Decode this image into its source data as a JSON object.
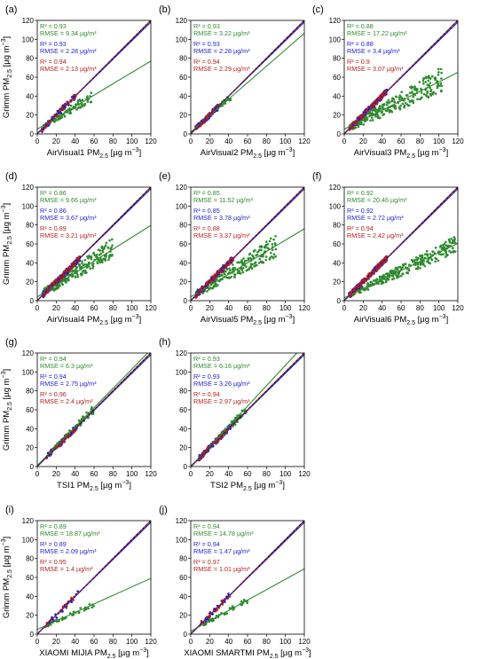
{
  "figure": {
    "y_label_main": "Grimm PM",
    "y_label_sub": "2.5",
    "y_label_unit": " [µg m",
    "y_label_exp": "−3",
    "y_label_end": "]"
  },
  "colors": {
    "green": "#2e8b2e",
    "blue": "#1f1fd0",
    "red": "#b22222",
    "one_to_one": "#000000"
  },
  "chart_data": [
    {
      "type": "scatter",
      "panel_label": "(a)",
      "xlabel_main": "AirVisual1 PM",
      "xlabel_sub": "2.5",
      "xlabel_unit": " [µg m",
      "xlabel_exp": "−3",
      "xlabel_end": "]",
      "xlim": [
        0,
        120
      ],
      "ylim": [
        0,
        120
      ],
      "xticks": [
        0,
        20,
        40,
        60,
        80,
        100,
        120
      ],
      "yticks": [
        0,
        20,
        40,
        60,
        80,
        100,
        120
      ],
      "show_ylabel": true,
      "stats": [
        {
          "color": "green",
          "r2": "R² = 0.93",
          "rmse": "RMSE = 9.34 µg/m³"
        },
        {
          "color": "blue",
          "r2": "R² = 0.93",
          "rmse": "RMSE = 2.28 µg/m³"
        },
        {
          "color": "red",
          "r2": "R² = 0.94",
          "rmse": "RMSE = 2.13 µg/m³"
        }
      ],
      "fits": [
        {
          "color": "green",
          "slope": 0.6,
          "intercept": 5
        },
        {
          "color": "blue",
          "slope": 0.98,
          "intercept": 0.5
        },
        {
          "color": "red",
          "slope": 1.0,
          "intercept": 0
        }
      ],
      "scatter": {
        "color": "green",
        "x_range": [
          5,
          58
        ],
        "slope": 0.62,
        "intercept": 4,
        "spread": 4,
        "n": 90,
        "seed": 11
      }
    },
    {
      "type": "scatter",
      "panel_label": "(b)",
      "xlabel_main": "AirVisual2 PM",
      "xlabel_sub": "2.5",
      "xlabel_unit": " [µg m",
      "xlabel_exp": "−3",
      "xlabel_end": "]",
      "xlim": [
        0,
        120
      ],
      "ylim": [
        0,
        120
      ],
      "xticks": [
        0,
        20,
        40,
        60,
        80,
        100,
        120
      ],
      "yticks": [
        0,
        20,
        40,
        60,
        80,
        100,
        120
      ],
      "show_ylabel": false,
      "stats": [
        {
          "color": "green",
          "r2": "R² = 0.93",
          "rmse": "RMSE = 3.22 µg/m³"
        },
        {
          "color": "blue",
          "r2": "R² = 0.93",
          "rmse": "RMSE = 2.28 µg/m³"
        },
        {
          "color": "red",
          "r2": "R² = 0.94",
          "rmse": "RMSE = 2.29 µg/m³"
        }
      ],
      "fits": [
        {
          "color": "green",
          "slope": 0.87,
          "intercept": 2
        },
        {
          "color": "blue",
          "slope": 0.98,
          "intercept": 0.5
        },
        {
          "color": "red",
          "slope": 1.0,
          "intercept": 0
        }
      ],
      "scatter": {
        "color": "green",
        "x_range": [
          5,
          42
        ],
        "slope": 0.88,
        "intercept": 2,
        "spread": 3,
        "n": 90,
        "seed": 23
      }
    },
    {
      "type": "scatter",
      "panel_label": "(c)",
      "xlabel_main": "AirVisual3 PM",
      "xlabel_sub": "2.5",
      "xlabel_unit": " [µg m",
      "xlabel_exp": "−3",
      "xlabel_end": "]",
      "xlim": [
        0,
        120
      ],
      "ylim": [
        0,
        120
      ],
      "xticks": [
        0,
        20,
        40,
        60,
        80,
        100,
        120
      ],
      "yticks": [
        0,
        20,
        40,
        60,
        80,
        100,
        120
      ],
      "show_ylabel": false,
      "stats": [
        {
          "color": "green",
          "r2": "R² = 0.88",
          "rmse": "RMSE = 17.22 µg/m³"
        },
        {
          "color": "blue",
          "r2": "R² = 0.88",
          "rmse": "RMSE = 3.4 µg/m³"
        },
        {
          "color": "red",
          "r2": "R² = 0.9",
          "rmse": "RMSE = 3.07 µg/m³"
        }
      ],
      "fits": [
        {
          "color": "green",
          "slope": 0.5,
          "intercept": 5
        },
        {
          "color": "blue",
          "slope": 0.98,
          "intercept": 0.5
        },
        {
          "color": "red",
          "slope": 1.0,
          "intercept": 0
        }
      ],
      "scatter": {
        "color": "green",
        "x_range": [
          5,
          105
        ],
        "slope": 0.52,
        "intercept": 4,
        "spread": 6,
        "n": 260,
        "seed": 37
      }
    },
    {
      "type": "scatter",
      "panel_label": "(d)",
      "xlabel_main": "AirVisual4 PM",
      "xlabel_sub": "2.5",
      "xlabel_unit": " [µg m",
      "xlabel_exp": "−3",
      "xlabel_end": "]",
      "xlim": [
        0,
        120
      ],
      "ylim": [
        0,
        120
      ],
      "xticks": [
        0,
        20,
        40,
        60,
        80,
        100,
        120
      ],
      "yticks": [
        0,
        20,
        40,
        60,
        80,
        100,
        120
      ],
      "show_ylabel": true,
      "stats": [
        {
          "color": "green",
          "r2": "R² = 0.86",
          "rmse": "RMSE = 9.66 µg/m³"
        },
        {
          "color": "blue",
          "r2": "R² = 0.86",
          "rmse": "RMSE = 3.67 µg/m³"
        },
        {
          "color": "red",
          "r2": "R² = 0.89",
          "rmse": "RMSE = 3.21 µg/m³"
        }
      ],
      "fits": [
        {
          "color": "green",
          "slope": 0.63,
          "intercept": 4
        },
        {
          "color": "blue",
          "slope": 0.98,
          "intercept": 0.5
        },
        {
          "color": "red",
          "slope": 1.0,
          "intercept": 0
        }
      ],
      "scatter": {
        "color": "green",
        "x_range": [
          5,
          80
        ],
        "slope": 0.65,
        "intercept": 4,
        "spread": 6,
        "n": 220,
        "seed": 41
      }
    },
    {
      "type": "scatter",
      "panel_label": "(e)",
      "xlabel_main": "AirVisual5 PM",
      "xlabel_sub": "2.5",
      "xlabel_unit": " [µg m",
      "xlabel_exp": "−3",
      "xlabel_end": "]",
      "xlim": [
        0,
        120
      ],
      "ylim": [
        0,
        120
      ],
      "xticks": [
        0,
        20,
        40,
        60,
        80,
        100,
        120
      ],
      "yticks": [
        0,
        20,
        40,
        60,
        80,
        100,
        120
      ],
      "show_ylabel": false,
      "stats": [
        {
          "color": "green",
          "r2": "R² = 0.85",
          "rmse": "RMSE = 11.52 µg/m³"
        },
        {
          "color": "blue",
          "r2": "R² = 0.85",
          "rmse": "RMSE = 3.78 µg/m³"
        },
        {
          "color": "red",
          "r2": "R² = 0.88",
          "rmse": "RMSE = 3.37 µg/m³"
        }
      ],
      "fits": [
        {
          "color": "green",
          "slope": 0.6,
          "intercept": 4
        },
        {
          "color": "blue",
          "slope": 0.98,
          "intercept": 0.5
        },
        {
          "color": "red",
          "slope": 1.0,
          "intercept": 0
        }
      ],
      "scatter": {
        "color": "green",
        "x_range": [
          5,
          90
        ],
        "slope": 0.6,
        "intercept": 4,
        "spread": 6,
        "n": 220,
        "seed": 53
      }
    },
    {
      "type": "scatter",
      "panel_label": "(f)",
      "xlabel_main": "AirVisual6 PM",
      "xlabel_sub": "2.5",
      "xlabel_unit": " [µg m",
      "xlabel_exp": "−3",
      "xlabel_end": "]",
      "xlim": [
        0,
        120
      ],
      "ylim": [
        0,
        120
      ],
      "xticks": [
        0,
        20,
        40,
        60,
        80,
        100,
        120
      ],
      "yticks": [
        0,
        20,
        40,
        60,
        80,
        100,
        120
      ],
      "show_ylabel": false,
      "stats": [
        {
          "color": "green",
          "r2": "R² = 0.92",
          "rmse": "RMSE = 20.46 µg/m³"
        },
        {
          "color": "blue",
          "r2": "R² = 0.92",
          "rmse": "RMSE = 2.72 µg/m³"
        },
        {
          "color": "red",
          "r2": "R² = 0.94",
          "rmse": "RMSE = 2.42 µg/m³"
        }
      ],
      "fits": [
        {
          "color": "green",
          "slope": 0.48,
          "intercept": 3
        },
        {
          "color": "blue",
          "slope": 0.98,
          "intercept": 0.5
        },
        {
          "color": "red",
          "slope": 1.0,
          "intercept": 0
        }
      ],
      "scatter": {
        "color": "green",
        "x_range": [
          5,
          118
        ],
        "slope": 0.48,
        "intercept": 3,
        "spread": 4,
        "n": 280,
        "seed": 61
      }
    },
    {
      "type": "scatter",
      "panel_label": "(g)",
      "xlabel_main": "TSI1 PM",
      "xlabel_sub": "2.5",
      "xlabel_unit": " [µg m",
      "xlabel_exp": "−3",
      "xlabel_end": "]",
      "xlim": [
        0,
        120
      ],
      "ylim": [
        0,
        120
      ],
      "xticks": [
        0,
        20,
        40,
        60,
        80,
        100,
        120
      ],
      "yticks": [
        0,
        20,
        40,
        60,
        80,
        100,
        120
      ],
      "show_ylabel": true,
      "stats": [
        {
          "color": "green",
          "r2": "R² = 0.94",
          "rmse": "RMSE = 6.3 µg/m³"
        },
        {
          "color": "blue",
          "r2": "R² = 0.94",
          "rmse": "RMSE = 2.75 µg/m³"
        },
        {
          "color": "red",
          "r2": "R² = 0.96",
          "rmse": "RMSE = 2.4 µg/m³"
        }
      ],
      "fits": [
        {
          "color": "green",
          "slope": 1.02,
          "intercept": 1
        },
        {
          "color": "blue",
          "slope": 0.98,
          "intercept": 0.5
        },
        {
          "color": "red",
          "slope": 1.0,
          "intercept": 0
        }
      ],
      "scatter": {
        "color": "green",
        "x_range": [
          10,
          60
        ],
        "slope": 1.0,
        "intercept": 1,
        "spread": 3,
        "n": 90,
        "seed": 71
      }
    },
    {
      "type": "scatter",
      "panel_label": "(h)",
      "xlabel_main": "TSI2 PM",
      "xlabel_sub": "2.5",
      "xlabel_unit": " [µg m",
      "xlabel_exp": "−3",
      "xlabel_end": "]",
      "xlim": [
        0,
        120
      ],
      "ylim": [
        0,
        120
      ],
      "xticks": [
        0,
        20,
        40,
        60,
        80,
        100,
        120
      ],
      "yticks": [
        0,
        20,
        40,
        60,
        80,
        100,
        120
      ],
      "show_ylabel": false,
      "stats": [
        {
          "color": "green",
          "r2": "R² = 0.93",
          "rmse": "RMSE = 6.16 µg/m³"
        },
        {
          "color": "blue",
          "r2": "R² = 0.93",
          "rmse": "RMSE = 3.26 µg/m³"
        },
        {
          "color": "red",
          "r2": "R² = 0.94",
          "rmse": "RMSE = 2.97 µg/m³"
        }
      ],
      "fits": [
        {
          "color": "green",
          "slope": 1.08,
          "intercept": -1
        },
        {
          "color": "blue",
          "slope": 0.98,
          "intercept": 0.5
        },
        {
          "color": "red",
          "slope": 1.0,
          "intercept": 0
        }
      ],
      "scatter": {
        "color": "green",
        "x_range": [
          8,
          60
        ],
        "slope": 1.02,
        "intercept": 0,
        "spread": 3,
        "n": 110,
        "seed": 83
      }
    },
    {
      "type": "scatter",
      "panel_label": "(i)",
      "xlabel_main": "XIAOMI MIJIA PM",
      "xlabel_sub": "2.5",
      "xlabel_unit": " [µg m",
      "xlabel_exp": "−3",
      "xlabel_end": "]",
      "xlim": [
        0,
        120
      ],
      "ylim": [
        0,
        120
      ],
      "xticks": [
        0,
        20,
        40,
        60,
        80,
        100,
        120
      ],
      "yticks": [
        0,
        20,
        40,
        60,
        80,
        100,
        120
      ],
      "show_ylabel": true,
      "stats": [
        {
          "color": "green",
          "r2": "R² = 0.89",
          "rmse": "RMSE = 18.87 µg/m³"
        },
        {
          "color": "blue",
          "r2": "R² = 0.89",
          "rmse": "RMSE = 2.09 µg/m³"
        },
        {
          "color": "red",
          "r2": "R² = 0.95",
          "rmse": "RMSE = 1.4 µg/m³"
        }
      ],
      "fits": [
        {
          "color": "green",
          "slope": 0.45,
          "intercept": 5
        },
        {
          "color": "blue",
          "slope": 0.98,
          "intercept": 0.5
        },
        {
          "color": "red",
          "slope": 1.0,
          "intercept": 0
        }
      ],
      "scatter": {
        "color": "green",
        "x_range": [
          8,
          62
        ],
        "slope": 0.45,
        "intercept": 5,
        "spread": 2,
        "n": 40,
        "seed": 97
      }
    },
    {
      "type": "scatter",
      "panel_label": "(j)",
      "xlabel_main": "XIAOMI SMARTMI PM",
      "xlabel_sub": "2.5",
      "xlabel_unit": " [µg m",
      "xlabel_exp": "−3",
      "xlabel_end": "]",
      "xlim": [
        0,
        120
      ],
      "ylim": [
        0,
        120
      ],
      "xticks": [
        0,
        20,
        40,
        60,
        80,
        100,
        120
      ],
      "yticks": [
        0,
        20,
        40,
        60,
        80,
        100,
        120
      ],
      "show_ylabel": false,
      "stats": [
        {
          "color": "green",
          "r2": "R² = 0.94",
          "rmse": "RMSE = 14.78 µg/m³"
        },
        {
          "color": "blue",
          "r2": "R² = 0.94",
          "rmse": "RMSE = 1.47 µg/m³"
        },
        {
          "color": "red",
          "r2": "R² = 0.97",
          "rmse": "RMSE = 1.01 µg/m³"
        }
      ],
      "fits": [
        {
          "color": "green",
          "slope": 0.55,
          "intercept": 3
        },
        {
          "color": "blue",
          "slope": 0.98,
          "intercept": 0.5
        },
        {
          "color": "red",
          "slope": 1.0,
          "intercept": 0
        }
      ],
      "scatter": {
        "color": "green",
        "x_range": [
          10,
          60
        ],
        "slope": 0.55,
        "intercept": 3,
        "spread": 2,
        "n": 45,
        "seed": 101
      }
    }
  ]
}
